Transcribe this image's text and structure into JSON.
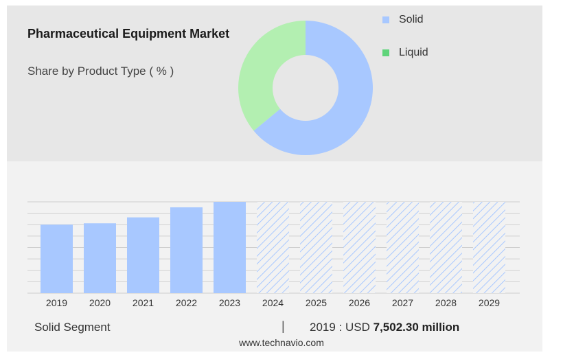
{
  "header": {
    "title": "Pharmaceutical Equipment Market",
    "subtitle": "Share by Product Type ( % )"
  },
  "legend": [
    {
      "label": "Solid",
      "color": "#a8c8ff"
    },
    {
      "label": "Liquid",
      "color": "#b3efb1"
    }
  ],
  "chart_data": [
    {
      "type": "pie",
      "title": "Pharmaceutical Equipment Market",
      "subtitle": "Share by Product Type ( % )",
      "slices": [
        {
          "label": "Solid",
          "value": 64,
          "color": "#a8c8ff"
        },
        {
          "label": "Liquid",
          "value": 36,
          "color": "#b3efb1"
        }
      ]
    },
    {
      "type": "bar",
      "categories": [
        "2019",
        "2020",
        "2021",
        "2022",
        "2023",
        "2024",
        "2025",
        "2026",
        "2027",
        "2028",
        "2029"
      ],
      "values": [
        7502.3,
        7650,
        8300,
        9400,
        10000,
        null,
        null,
        null,
        null,
        null,
        null
      ],
      "forecast_years": [
        "2024",
        "2025",
        "2026",
        "2027",
        "2028",
        "2029"
      ],
      "bar_color": "#a8c8ff",
      "grid": true
    }
  ],
  "footer": {
    "segment_label": "Solid Segment",
    "separator": "|",
    "year_prefix": "2019 : USD ",
    "value": "7,502.30 million",
    "source": "www.technavio.com"
  }
}
